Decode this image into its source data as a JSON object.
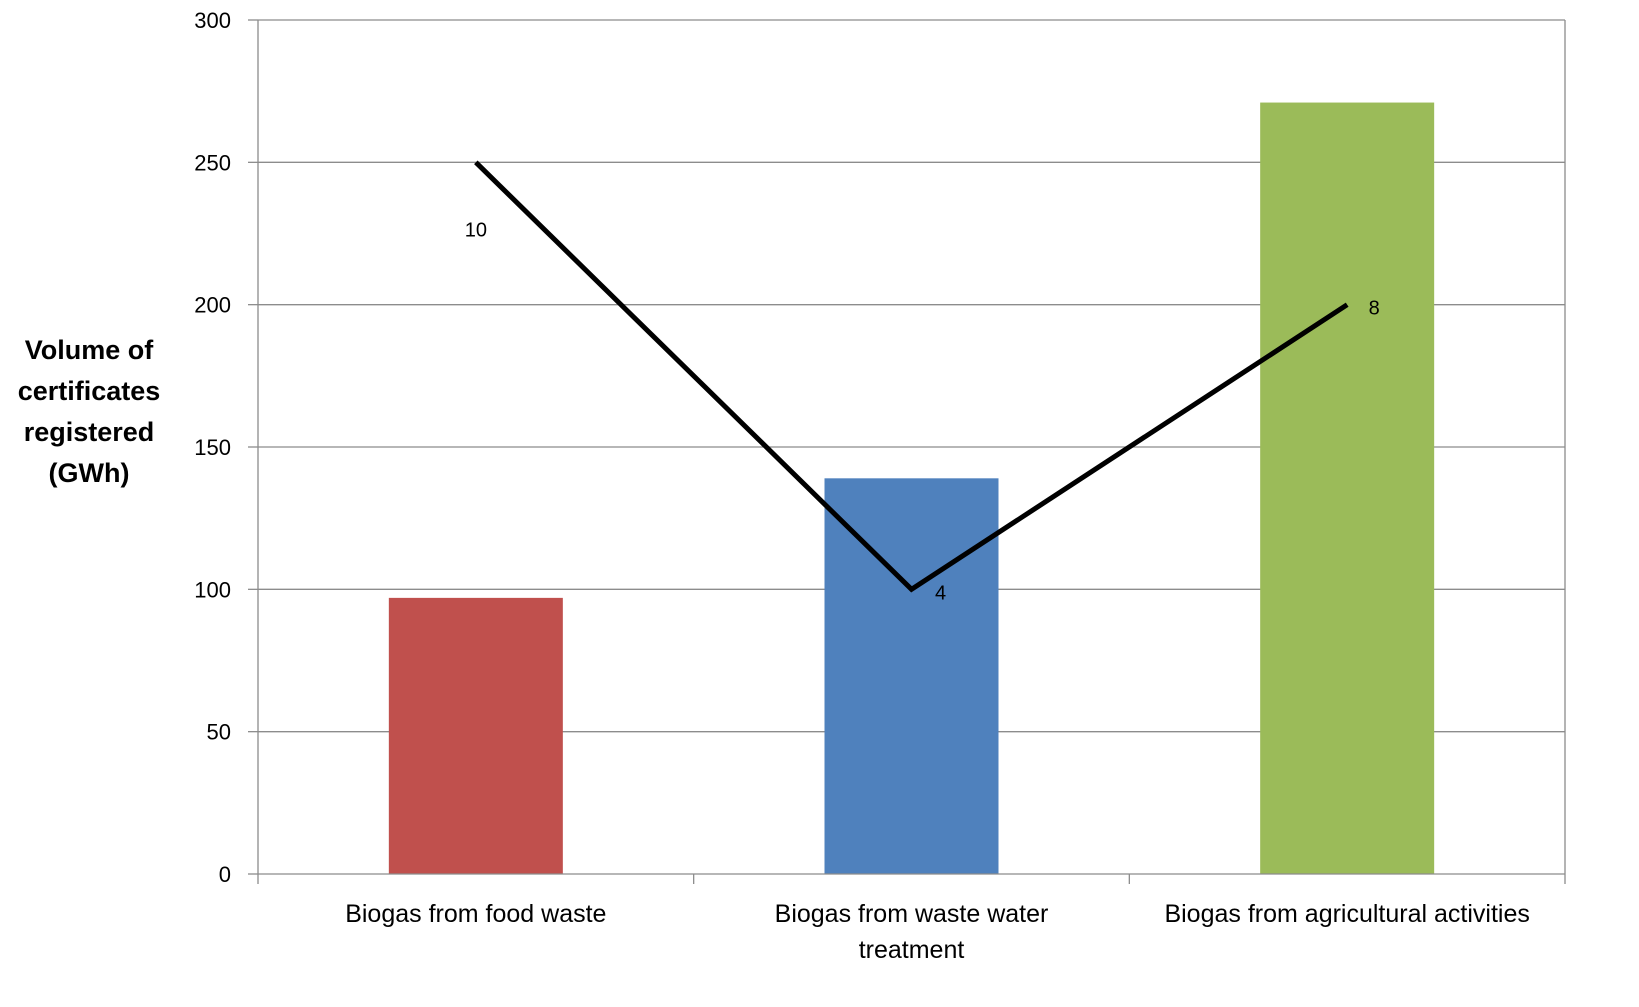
{
  "chart_data": {
    "type": "bar",
    "title": "",
    "xlabel": "",
    "ylabel_lines": [
      "Volume of",
      "certificates",
      "registered",
      "(GWh)"
    ],
    "ylim": [
      0,
      300
    ],
    "yticks": [
      0,
      50,
      100,
      150,
      200,
      250,
      300
    ],
    "grid": true,
    "categories": [
      [
        "Biogas from food waste"
      ],
      [
        "Biogas from waste water",
        "treatment"
      ],
      [
        "Biogas from agricultural activities"
      ]
    ],
    "series": [
      {
        "kind": "bar",
        "values": [
          97,
          139,
          271
        ],
        "colors": [
          "#C0504D",
          "#4F81BD",
          "#9BBB59"
        ]
      },
      {
        "kind": "line",
        "plot_values": [
          250,
          100,
          200
        ],
        "data_labels": [
          "10",
          "4",
          "8"
        ],
        "color": "#000000"
      }
    ]
  }
}
